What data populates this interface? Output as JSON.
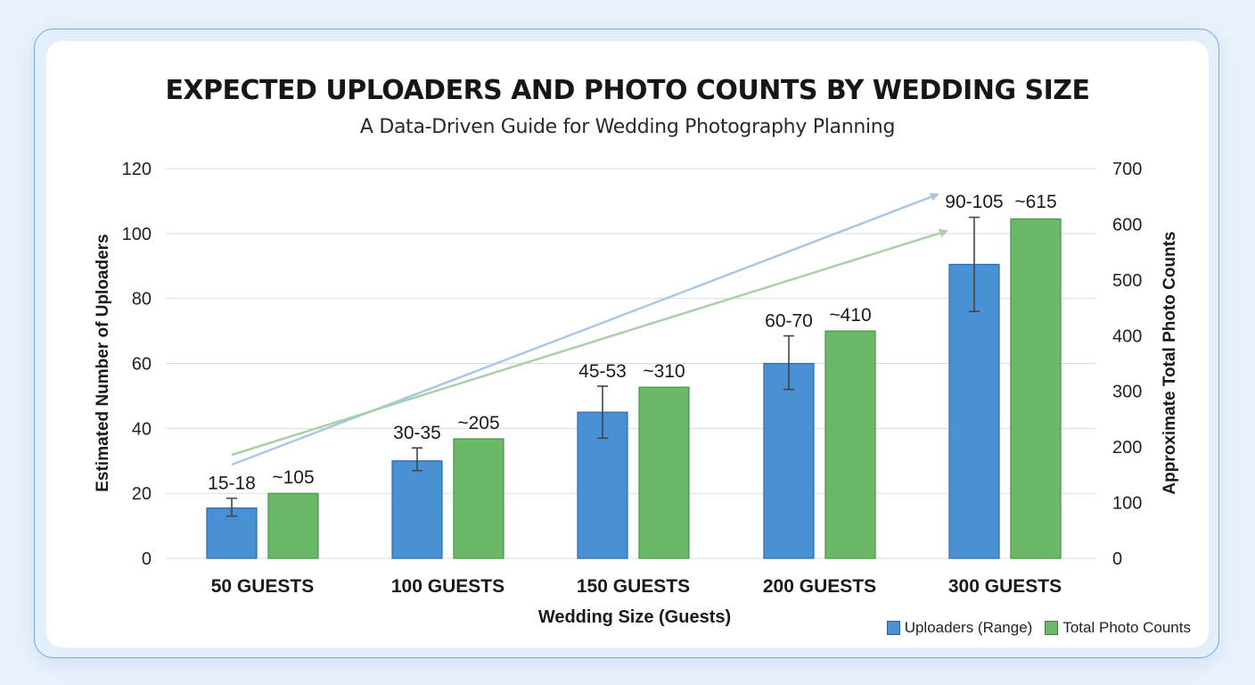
{
  "title": "EXPECTED UPLOADERS AND PHOTO COUNTS BY WEDDING SIZE",
  "subtitle": "A Data-Driven Guide for Wedding Photography Planning",
  "colors": {
    "uploaders": "#4a90d4",
    "uploaders_border": "#2d6aa8",
    "photos": "#6ab868",
    "photos_border": "#4a9448",
    "grid": "#dcdcdc",
    "trend_blue": "#a9c8e6",
    "trend_green": "#a9d0a8"
  },
  "legend": [
    {
      "label": "Uploaders (Range)",
      "color": "#4a90d4"
    },
    {
      "label": "Total Photo Counts",
      "color": "#6ab868"
    }
  ],
  "chart_data": {
    "type": "bar",
    "title": "EXPECTED UPLOADERS AND PHOTO COUNTS BY WEDDING SIZE",
    "subtitle": "A Data-Driven Guide for Wedding Photography Planning",
    "xlabel": "Wedding Size (Guests)",
    "ylabel": "Estimated Number of Uploaders",
    "y2label": "Approximate Total Photo Counts",
    "ylim": [
      0,
      120
    ],
    "y2lim": [
      0,
      700
    ],
    "yticks": [
      0,
      20,
      40,
      60,
      80,
      100,
      120
    ],
    "y2ticks": [
      0,
      100,
      200,
      300,
      400,
      500,
      600,
      700
    ],
    "grid": true,
    "legend_position": "bottom-right",
    "categories": [
      "50 GUESTS",
      "100 GUESTS",
      "150 GUESTS",
      "200 GUESTS",
      "300 GUESTS"
    ],
    "series": [
      {
        "name": "Uploaders (Range)",
        "axis": "left",
        "values": [
          15.5,
          30,
          45,
          60,
          90.5
        ],
        "error_low": [
          13,
          27,
          37,
          52,
          76
        ],
        "error_high": [
          18.5,
          34,
          53,
          68.5,
          105
        ],
        "labels": [
          "15-18",
          "30-35",
          "45-53",
          "60-70",
          "90-105"
        ]
      },
      {
        "name": "Total Photo Counts",
        "axis": "right",
        "values": [
          105,
          205,
          310,
          410,
          615
        ],
        "bar_heights_left_axis": [
          20,
          36.8,
          52.7,
          70,
          104.5
        ],
        "labels": [
          "~105",
          "~205",
          "~310",
          "~410",
          "~615"
        ]
      }
    ],
    "annotations": [
      {
        "type": "trend-arrow",
        "color": "blue",
        "from": [
          260,
          521
        ],
        "to": [
          1052,
          218
        ]
      },
      {
        "type": "trend-arrow",
        "color": "green",
        "from": [
          260,
          510
        ],
        "to": [
          1062,
          259
        ]
      }
    ]
  }
}
